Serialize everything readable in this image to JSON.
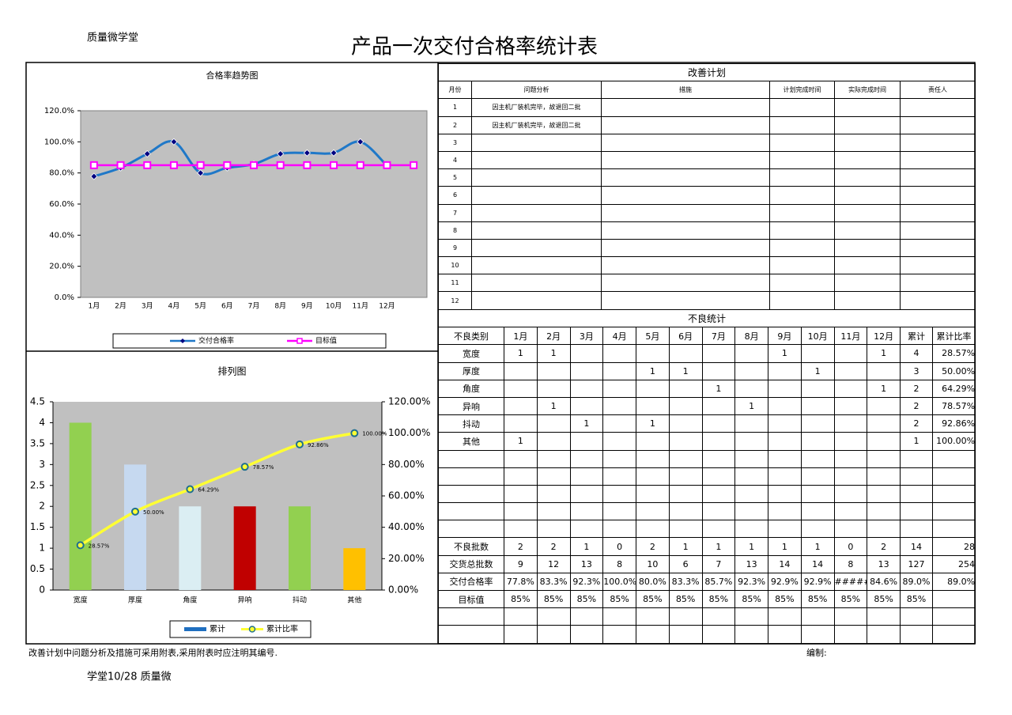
{
  "header": {
    "brand": "质量微学堂",
    "title": "产品一次交付合格率统计表"
  },
  "trend_chart": {
    "type": "line",
    "title": "合格率趋势图",
    "categories": [
      "1月",
      "2月",
      "3月",
      "4月",
      "5月",
      "6月",
      "7月",
      "8月",
      "9月",
      "10月",
      "11月",
      "12月",
      null
    ],
    "series": [
      {
        "name": "交付合格率",
        "color": "#1f78c8",
        "values": [
          77.8,
          83.3,
          92.3,
          100,
          80,
          83.3,
          85.7,
          92.3,
          92.9,
          92.9,
          100,
          84.6,
          null
        ]
      },
      {
        "name": "目标值",
        "color": "#ff00ff",
        "values": [
          85,
          85,
          85,
          85,
          85,
          85,
          85,
          85,
          85,
          85,
          85,
          85,
          85
        ]
      }
    ],
    "ylim": [
      0,
      120
    ],
    "yticks": [
      {
        "value": 0,
        "label": "0.0%"
      },
      {
        "value": 20,
        "label": "20.0%"
      },
      {
        "value": 40,
        "label": "40.0%"
      },
      {
        "value": 60,
        "label": "60.0%"
      },
      {
        "value": 80,
        "label": "80.0%"
      },
      {
        "value": 100,
        "label": "100.0%"
      },
      {
        "value": 120,
        "label": "120.0%"
      }
    ],
    "legend": "bottom"
  },
  "pareto_chart": {
    "type": "bar",
    "title": "排列图",
    "categories": [
      "宽度",
      "厚度",
      "角度",
      "异响",
      "抖动",
      "其他"
    ],
    "series": [
      {
        "name": "累计",
        "color": "#1f6fc0",
        "colors": [
          "#92d050",
          "#c6d9f0",
          "#dbeef3",
          "#c00000",
          "#92d050",
          "#ffc000"
        ],
        "values": [
          4,
          3,
          2,
          2,
          2,
          1
        ]
      },
      {
        "name": "累计比率",
        "color": "#ffff33",
        "axis": "y2",
        "values": [
          28.57,
          50,
          64.29,
          78.57,
          92.86,
          100
        ],
        "value_labels": [
          "28.57%",
          "50.00%",
          "64.29%",
          "78.57%",
          "92.86%",
          "100.00%"
        ]
      }
    ],
    "ylim": [
      0,
      4.5
    ],
    "yticks": [
      0,
      0.5,
      1,
      1.5,
      2,
      2.5,
      3,
      3.5,
      4,
      4.5
    ],
    "y2lim": [
      0,
      120
    ],
    "y2ticks": [
      {
        "value": 0,
        "label": "0.00%"
      },
      {
        "value": 20,
        "label": "20.00%"
      },
      {
        "value": 40,
        "label": "40.00%"
      },
      {
        "value": 60,
        "label": "60.00%"
      },
      {
        "value": 80,
        "label": "80.00%"
      },
      {
        "value": 100,
        "label": "100.00%"
      },
      {
        "value": 120,
        "label": "120.00%"
      }
    ],
    "legend": "bottom"
  },
  "plan": {
    "title": "改善计划",
    "headers": [
      "月份",
      "问题分析",
      "措施",
      "计划完成时间",
      "实际完成时间",
      "责任人"
    ],
    "rows": [
      {
        "month": 1,
        "issue": "因主机厂装机完毕，故退回二批"
      },
      {
        "month": 2,
        "issue": "因主机厂装机完毕，故退回二批"
      },
      {
        "month": 3
      },
      {
        "month": 4
      },
      {
        "month": 5
      },
      {
        "month": 6
      },
      {
        "month": 7
      },
      {
        "month": 8
      },
      {
        "month": 9
      },
      {
        "month": 10
      },
      {
        "month": 11
      },
      {
        "month": 12
      }
    ]
  },
  "defects": {
    "title": "不良统计",
    "headers": [
      "不良类别",
      "1月",
      "2月",
      "3月",
      "4月",
      "5月",
      "6月",
      "7月",
      "8月",
      "9月",
      "10月",
      "11月",
      "12月",
      "累计",
      "累计比率"
    ],
    "rows": [
      {
        "name": "宽度",
        "counts": [
          1,
          1,
          null,
          null,
          null,
          null,
          null,
          null,
          1,
          null,
          null,
          1
        ],
        "total": 4,
        "ratio": "28.57%"
      },
      {
        "name": "厚度",
        "counts": [
          null,
          null,
          null,
          null,
          1,
          1,
          null,
          null,
          null,
          1,
          null,
          null
        ],
        "total": 3,
        "ratio": "50.00%"
      },
      {
        "name": "角度",
        "counts": [
          null,
          null,
          null,
          null,
          null,
          null,
          1,
          null,
          null,
          null,
          null,
          1
        ],
        "total": 2,
        "ratio": "64.29%"
      },
      {
        "name": "异响",
        "counts": [
          null,
          1,
          null,
          null,
          null,
          null,
          null,
          1,
          null,
          null,
          null,
          null
        ],
        "total": 2,
        "ratio": "78.57%"
      },
      {
        "name": "抖动",
        "counts": [
          null,
          null,
          1,
          null,
          1,
          null,
          null,
          null,
          null,
          null,
          null,
          null
        ],
        "total": 2,
        "ratio": "92.86%"
      },
      {
        "name": "其他",
        "counts": [
          1,
          null,
          null,
          null,
          null,
          null,
          null,
          null,
          null,
          null,
          null,
          null
        ],
        "total": 1,
        "ratio": "100.00%"
      }
    ],
    "summary": [
      {
        "name": "不良批数",
        "values": [
          2,
          2,
          1,
          0,
          2,
          1,
          1,
          1,
          1,
          1,
          0,
          2,
          14,
          28
        ]
      },
      {
        "name": "交货总批数",
        "values": [
          9,
          12,
          13,
          8,
          10,
          6,
          7,
          13,
          14,
          14,
          8,
          13,
          127,
          254
        ]
      },
      {
        "name": "交付合格率",
        "values": [
          "77.8%",
          "83.3%",
          "92.3%",
          "100.0%",
          "80.0%",
          "83.3%",
          "85.7%",
          "92.3%",
          "92.9%",
          "92.9%",
          "#####",
          "84.6%",
          "89.0%",
          "89.0%"
        ]
      },
      {
        "name": "目标值",
        "values": [
          "85%",
          "85%",
          "85%",
          "85%",
          "85%",
          "85%",
          "85%",
          "85%",
          "85%",
          "85%",
          "85%",
          "85%",
          "85%"
        ]
      }
    ]
  },
  "footer": {
    "note": "改善计划中问题分析及措施可采用附表,采用附表时应注明其编号.",
    "editor": "编制:",
    "bottom": "学堂10/28 质量微"
  }
}
